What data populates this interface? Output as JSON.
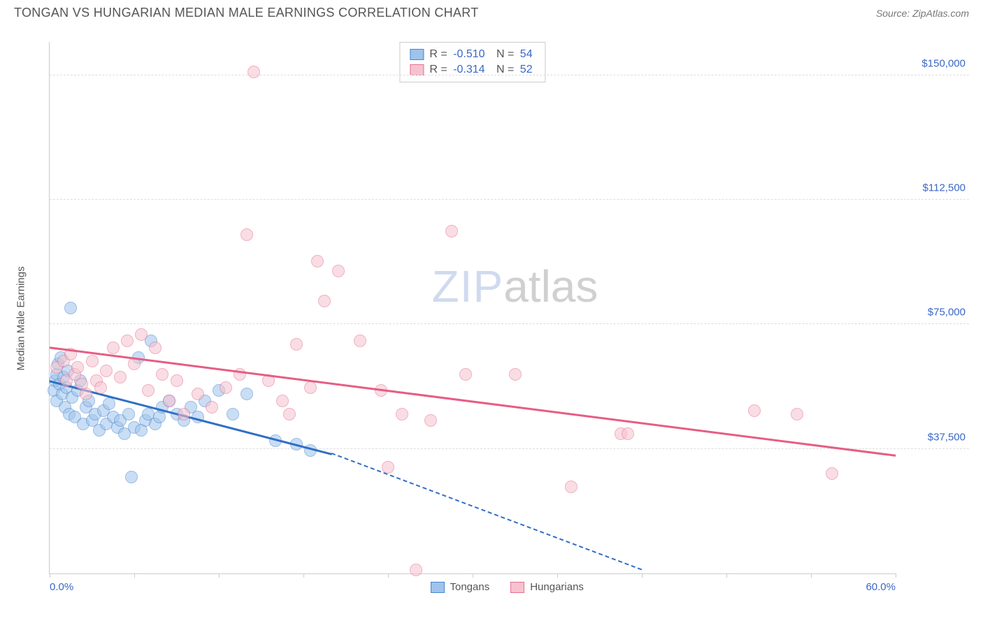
{
  "title": "TONGAN VS HUNGARIAN MEDIAN MALE EARNINGS CORRELATION CHART",
  "source": "Source: ZipAtlas.com",
  "ylabel": "Median Male Earnings",
  "watermark": {
    "a": "ZIP",
    "b": "atlas"
  },
  "chart": {
    "type": "scatter",
    "xlim": [
      0,
      60
    ],
    "ylim": [
      0,
      160000
    ],
    "xticks": [
      0,
      6,
      12,
      18,
      24,
      30,
      36,
      42,
      48,
      54,
      60
    ],
    "xtick_labels": {
      "0": "0.0%",
      "60": "60.0%"
    },
    "yticks": [
      37500,
      75000,
      112500,
      150000
    ],
    "ytick_labels": [
      "$37,500",
      "$75,000",
      "$112,500",
      "$150,000"
    ],
    "grid_color": "#dddddd",
    "axis_color": "#cccccc",
    "background_color": "#ffffff",
    "point_radius": 9,
    "point_opacity": 0.55,
    "series": [
      {
        "name": "Tongans",
        "fill": "#9ec4ec",
        "stroke": "#4a86d0",
        "line_color": "#2f6fc4",
        "r": "-0.510",
        "n": "54",
        "trend": {
          "x1": 0,
          "y1": 58000,
          "x2": 20,
          "y2": 36000,
          "dash_to_x": 42,
          "dash_to_y": 1000
        },
        "points": [
          [
            0.3,
            55000
          ],
          [
            0.4,
            58000
          ],
          [
            0.5,
            60000
          ],
          [
            0.5,
            52000
          ],
          [
            0.6,
            63000
          ],
          [
            0.7,
            57000
          ],
          [
            0.8,
            65000
          ],
          [
            0.9,
            54000
          ],
          [
            1.0,
            59000
          ],
          [
            1.1,
            50000
          ],
          [
            1.2,
            56000
          ],
          [
            1.3,
            61000
          ],
          [
            1.4,
            48000
          ],
          [
            1.5,
            80000
          ],
          [
            1.6,
            53000
          ],
          [
            1.8,
            47000
          ],
          [
            2.0,
            55000
          ],
          [
            2.2,
            58000
          ],
          [
            2.4,
            45000
          ],
          [
            2.6,
            50000
          ],
          [
            2.8,
            52000
          ],
          [
            3.0,
            46000
          ],
          [
            3.2,
            48000
          ],
          [
            3.5,
            43000
          ],
          [
            3.8,
            49000
          ],
          [
            4.0,
            45000
          ],
          [
            4.2,
            51000
          ],
          [
            4.5,
            47000
          ],
          [
            4.8,
            44000
          ],
          [
            5.0,
            46000
          ],
          [
            5.3,
            42000
          ],
          [
            5.6,
            48000
          ],
          [
            5.8,
            29000
          ],
          [
            6.0,
            44000
          ],
          [
            6.3,
            65000
          ],
          [
            6.5,
            43000
          ],
          [
            6.8,
            46000
          ],
          [
            7.0,
            48000
          ],
          [
            7.2,
            70000
          ],
          [
            7.5,
            45000
          ],
          [
            7.8,
            47000
          ],
          [
            8.0,
            50000
          ],
          [
            8.5,
            52000
          ],
          [
            9.0,
            48000
          ],
          [
            9.5,
            46000
          ],
          [
            10.0,
            50000
          ],
          [
            10.5,
            47000
          ],
          [
            11.0,
            52000
          ],
          [
            12.0,
            55000
          ],
          [
            13.0,
            48000
          ],
          [
            14.0,
            54000
          ],
          [
            16.0,
            40000
          ],
          [
            17.5,
            39000
          ],
          [
            18.5,
            37000
          ]
        ]
      },
      {
        "name": "Hungarians",
        "fill": "#f5c3cf",
        "stroke": "#e86f8f",
        "line_color": "#e65d84",
        "r": "-0.314",
        "n": "52",
        "trend": {
          "x1": 0,
          "y1": 68000,
          "x2": 60,
          "y2": 35500
        },
        "points": [
          [
            0.5,
            62000
          ],
          [
            1.0,
            64000
          ],
          [
            1.2,
            58000
          ],
          [
            1.5,
            66000
          ],
          [
            1.8,
            60000
          ],
          [
            2.0,
            62000
          ],
          [
            2.3,
            57000
          ],
          [
            2.6,
            54000
          ],
          [
            3.0,
            64000
          ],
          [
            3.3,
            58000
          ],
          [
            3.6,
            56000
          ],
          [
            4.0,
            61000
          ],
          [
            4.5,
            68000
          ],
          [
            5.0,
            59000
          ],
          [
            5.5,
            70000
          ],
          [
            6.0,
            63000
          ],
          [
            6.5,
            72000
          ],
          [
            7.0,
            55000
          ],
          [
            7.5,
            68000
          ],
          [
            8.0,
            60000
          ],
          [
            8.5,
            52000
          ],
          [
            9.0,
            58000
          ],
          [
            9.5,
            48000
          ],
          [
            10.5,
            54000
          ],
          [
            11.5,
            50000
          ],
          [
            12.5,
            56000
          ],
          [
            13.5,
            60000
          ],
          [
            14.0,
            102000
          ],
          [
            14.5,
            151000
          ],
          [
            15.5,
            58000
          ],
          [
            16.5,
            52000
          ],
          [
            17.0,
            48000
          ],
          [
            17.5,
            69000
          ],
          [
            18.5,
            56000
          ],
          [
            19.0,
            94000
          ],
          [
            19.5,
            82000
          ],
          [
            20.5,
            91000
          ],
          [
            22.0,
            70000
          ],
          [
            23.5,
            55000
          ],
          [
            24.0,
            32000
          ],
          [
            25.0,
            48000
          ],
          [
            26.0,
            1000
          ],
          [
            27.0,
            46000
          ],
          [
            28.5,
            103000
          ],
          [
            29.5,
            60000
          ],
          [
            33.0,
            60000
          ],
          [
            37.0,
            26000
          ],
          [
            40.5,
            42000
          ],
          [
            41.0,
            42000
          ],
          [
            50.0,
            49000
          ],
          [
            53.0,
            48000
          ],
          [
            55.5,
            30000
          ]
        ]
      }
    ],
    "bottom_legend": [
      "Tongans",
      "Hungarians"
    ]
  }
}
